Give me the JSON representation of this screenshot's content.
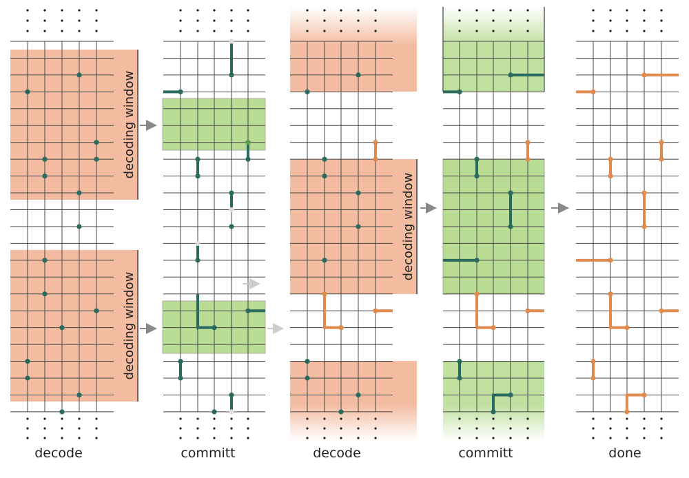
{
  "panels": [
    {
      "label": "decode"
    },
    {
      "label": "committ"
    },
    {
      "label": "decode"
    },
    {
      "label": "committ"
    },
    {
      "label": "done"
    }
  ],
  "windows": [
    {
      "label": "decoding window"
    },
    {
      "label": "decoding window"
    },
    {
      "label": "decoding window"
    }
  ]
}
